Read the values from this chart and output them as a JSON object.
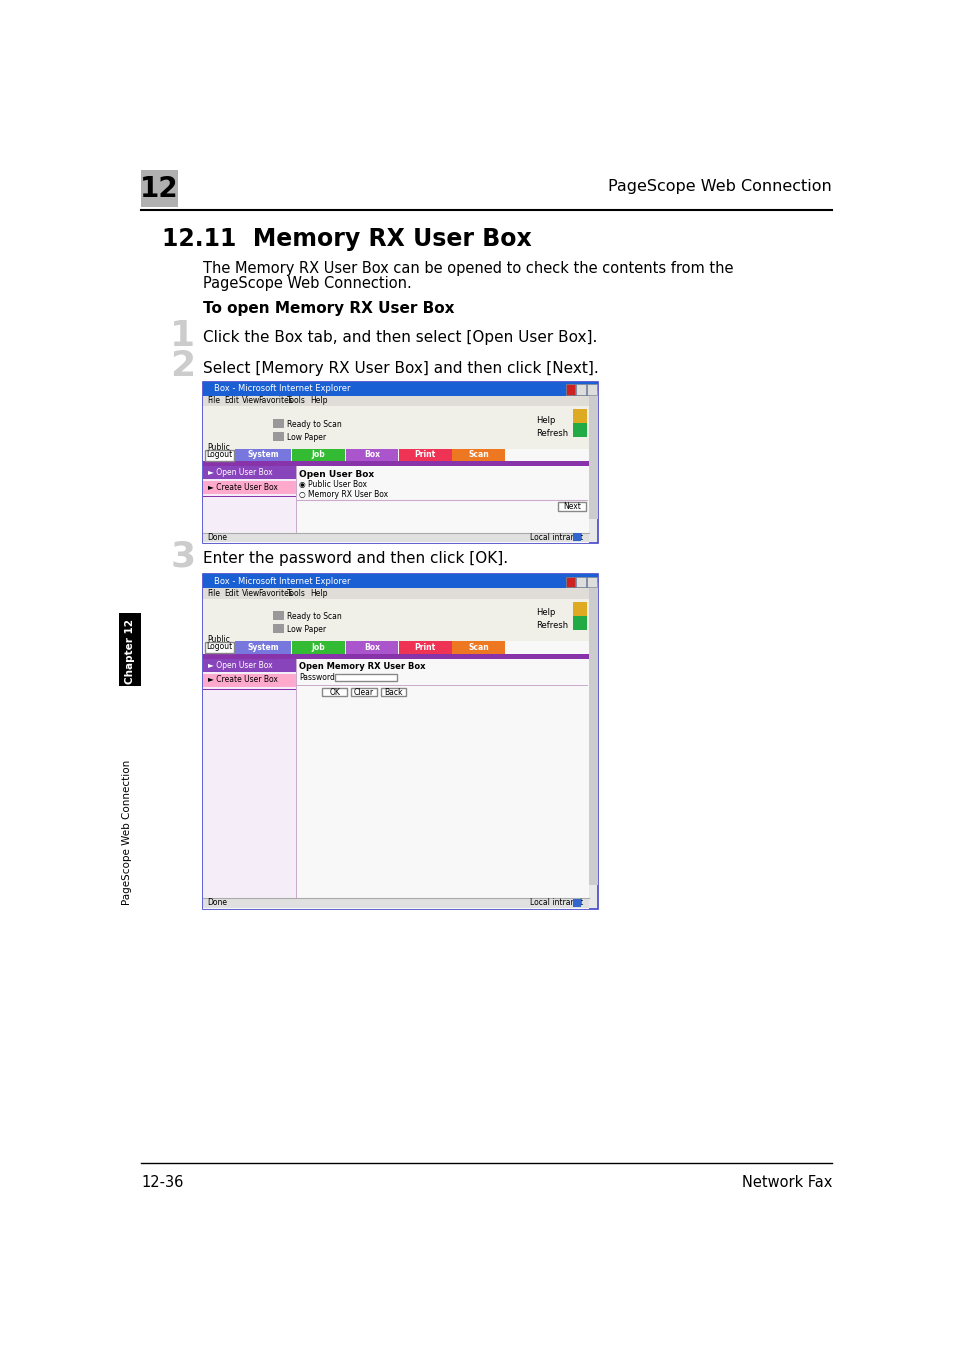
{
  "page_num": "12",
  "header_right": "PageScope Web Connection",
  "section_title": "12.11  Memory RX User Box",
  "body_text_line1": "The Memory RX User Box can be opened to check the contents from the",
  "body_text_line2": "PageScope Web Connection.",
  "subheading": "To open Memory RX User Box",
  "step1_num": "1",
  "step1_text": "Click the Box tab, and then select [Open User Box].",
  "step2_num": "2",
  "step2_text": "Select [Memory RX User Box] and then click [Next].",
  "step3_num": "3",
  "step3_text": "Enter the password and then click [OK].",
  "footer_left": "12-36",
  "footer_right": "Network Fax",
  "chapter_label": "Chapter 12",
  "side_label": "PageScope Web Connection",
  "bg_color": "#ffffff",
  "chapter_box_text": "12",
  "nav_labels": [
    "System",
    "Job",
    "Box",
    "Print",
    "Scan"
  ],
  "nav_colors": [
    "#7777dd",
    "#33bb33",
    "#aa55cc",
    "#ee3355",
    "#ee7722"
  ],
  "tab_widths": [
    72,
    68,
    68,
    68,
    68
  ],
  "menu_items": [
    "File",
    "Edit",
    "View",
    "Favorites",
    "Tools",
    "Help"
  ]
}
